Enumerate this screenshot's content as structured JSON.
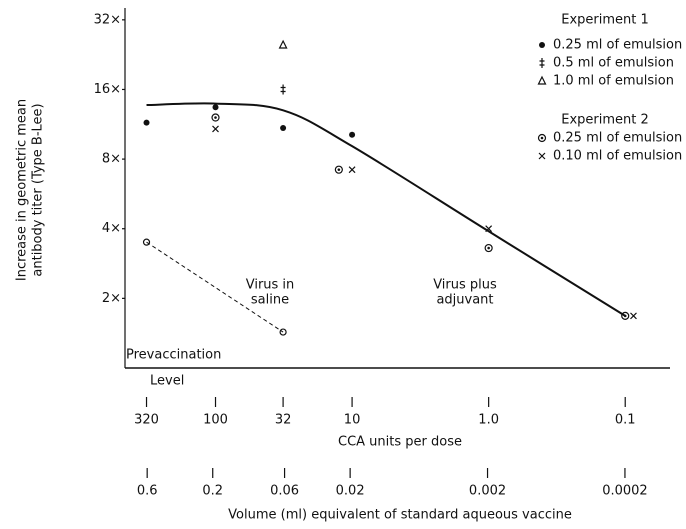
{
  "chart_data": {
    "type": "scatter",
    "ylabel": [
      "Increase in geometric mean",
      "antibody titer (Type B-Lee)"
    ],
    "xlabel": "CCA units per dose",
    "x2label": "Volume (ml) equivalent of standard aqueous vaccine",
    "xscale": "log",
    "yscale": "log",
    "xlim": [
      460,
      0.047
    ],
    "ylim": [
      1,
      36
    ],
    "x2lim": [
      0.87,
      9.4e-05
    ],
    "xticks": [
      320,
      100,
      32,
      10,
      {
        "value": 1,
        "label": "1.0"
      },
      0.1
    ],
    "x2ticks": [
      0.6,
      0.2,
      0.06,
      0.02,
      0.002,
      0.0002
    ],
    "yticks": [
      {
        "value": 2,
        "label": "2×"
      },
      {
        "value": 4,
        "label": "4×"
      },
      {
        "value": 8,
        "label": "8×"
      },
      {
        "value": 16,
        "label": "16×"
      },
      {
        "value": 32,
        "label": "32×"
      }
    ],
    "legend_headings": [
      "Experiment 1",
      "Experiment 2"
    ],
    "baseline_label": [
      "Prevaccination",
      "Level"
    ],
    "annotations": [
      [
        "Virus in",
        "saline"
      ],
      [
        "Virus plus",
        "adjuvant"
      ]
    ],
    "series": [
      {
        "name": "0.25 ml of emulsion",
        "marker": "dot",
        "color": "#111",
        "x": [
          320,
          100,
          32,
          10
        ],
        "values": [
          11.5,
          13.4,
          10.9,
          10.2
        ]
      },
      {
        "name": "0.5 ml of emulsion",
        "marker": "double-dagger",
        "color": "#111",
        "x": [
          32
        ],
        "values": [
          16
        ]
      },
      {
        "name": "1.0 ml of emulsion",
        "marker": "triangle",
        "color": "#111",
        "x": [
          32
        ],
        "values": [
          24.9
        ]
      },
      {
        "name": "0.25 ml of emulsion",
        "marker": "circled-dot",
        "color": "#111",
        "x": [
          100,
          12.5,
          1,
          0.1
        ],
        "values": [
          12.1,
          7.2,
          3.3,
          1.68
        ]
      },
      {
        "name": "0.10 ml of emulsion",
        "marker": "x",
        "color": "#111",
        "x": [
          100,
          10,
          1,
          0.087
        ],
        "values": [
          10.8,
          7.2,
          4.0,
          1.68
        ]
      },
      {
        "marker": "open-circle",
        "line": "dashed",
        "color": "#111",
        "x": [
          320,
          32
        ],
        "values": [
          3.5,
          1.43
        ]
      },
      {
        "marker": "none",
        "line": "solid",
        "color": "#111",
        "x": [
          320,
          100,
          32,
          10,
          1,
          0.1
        ],
        "values": [
          13.7,
          13.9,
          13.0,
          9.1,
          3.9,
          1.68
        ]
      }
    ]
  }
}
